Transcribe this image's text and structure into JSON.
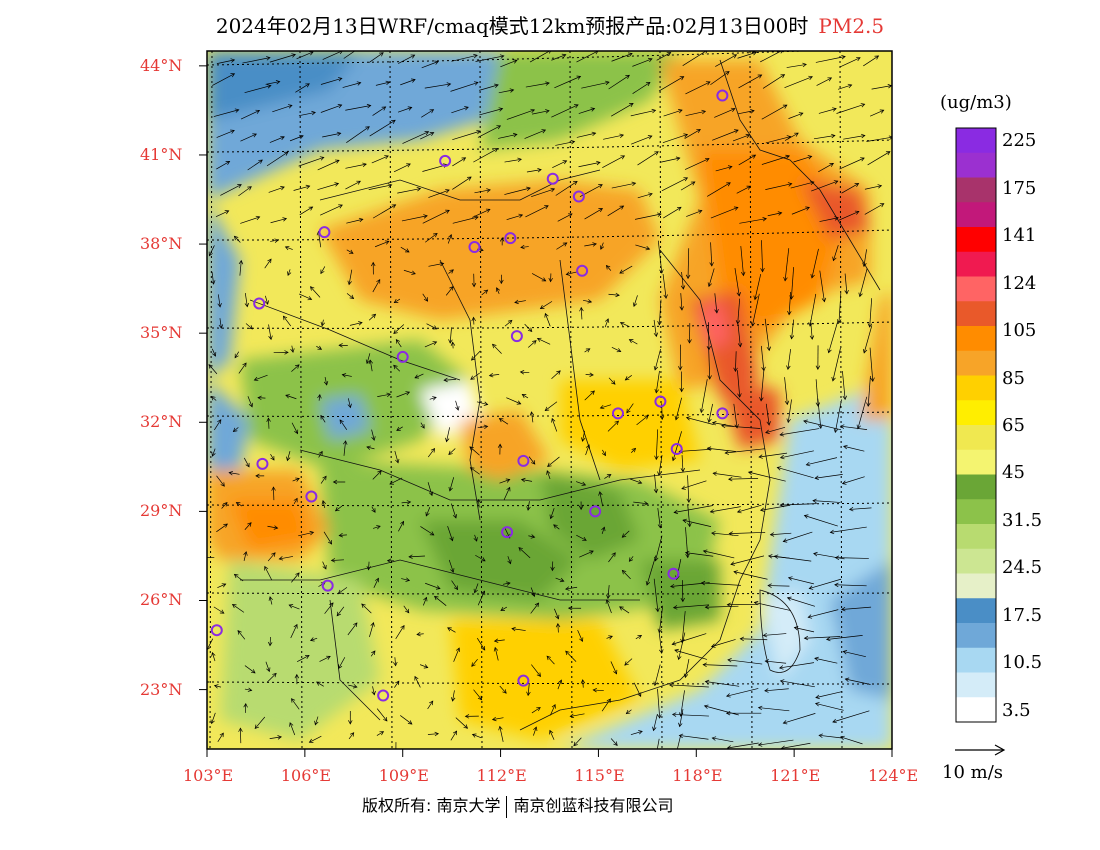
{
  "title": {
    "main": "2024年02月13日WRF/cmaq模式12km预报产品:02月13日00时",
    "pollutant": "PM2.5"
  },
  "map": {
    "lon_range": [
      103,
      124
    ],
    "lat_range": [
      21,
      44.5
    ],
    "lat_labels": [
      "44°N",
      "41°N",
      "38°N",
      "35°N",
      "32°N",
      "29°N",
      "26°N",
      "23°N"
    ],
    "lat_values": [
      44,
      41,
      38,
      35,
      32,
      29,
      26,
      23
    ],
    "lon_labels": [
      "103°E",
      "106°E",
      "109°E",
      "112°E",
      "115°E",
      "118°E",
      "121°E",
      "124°E"
    ],
    "lon_values": [
      103,
      106,
      109,
      112,
      115,
      118,
      121,
      124
    ],
    "cities": [
      {
        "lon": 118.8,
        "lat": 43.0
      },
      {
        "lon": 110.3,
        "lat": 40.8
      },
      {
        "lon": 113.6,
        "lat": 40.2
      },
      {
        "lon": 114.4,
        "lat": 39.6
      },
      {
        "lon": 106.6,
        "lat": 38.4
      },
      {
        "lon": 111.2,
        "lat": 37.9
      },
      {
        "lon": 112.3,
        "lat": 38.2
      },
      {
        "lon": 114.5,
        "lat": 37.1
      },
      {
        "lon": 104.6,
        "lat": 36.0
      },
      {
        "lon": 112.5,
        "lat": 34.9
      },
      {
        "lon": 109.0,
        "lat": 34.2
      },
      {
        "lon": 115.6,
        "lat": 32.3
      },
      {
        "lon": 116.9,
        "lat": 32.7
      },
      {
        "lon": 118.8,
        "lat": 32.3
      },
      {
        "lon": 117.4,
        "lat": 31.1
      },
      {
        "lon": 104.7,
        "lat": 30.6
      },
      {
        "lon": 112.7,
        "lat": 30.7
      },
      {
        "lon": 106.2,
        "lat": 29.5
      },
      {
        "lon": 114.9,
        "lat": 29.0
      },
      {
        "lon": 112.2,
        "lat": 28.3
      },
      {
        "lon": 106.7,
        "lat": 26.5
      },
      {
        "lon": 117.3,
        "lat": 26.9
      },
      {
        "lon": 103.3,
        "lat": 25.0
      },
      {
        "lon": 108.4,
        "lat": 22.8
      },
      {
        "lon": 112.7,
        "lat": 23.3
      }
    ]
  },
  "colorbar": {
    "unit": "(ug/m3)",
    "colors": [
      "#8a2be2",
      "#9b30d0",
      "#a8336b",
      "#c2187a",
      "#ff0000",
      "#f01a50",
      "#ff6464",
      "#e9592a",
      "#ff8c00",
      "#f7a428",
      "#ffd000",
      "#ffee00",
      "#f0e850",
      "#f4f470",
      "#6aa636",
      "#8cc24a",
      "#b8db70",
      "#cce692",
      "#e6f0c8",
      "#4a8ec6",
      "#6fa8d8",
      "#a8d8f2",
      "#d4ecf8",
      "#ffffff"
    ],
    "labels": [
      "225",
      "175",
      "141",
      "124",
      "105",
      "85",
      "65",
      "45",
      "31.5",
      "24.5",
      "17.5",
      "10.5",
      "3.5"
    ]
  },
  "wind_reference": {
    "label": "10 m/s"
  },
  "copyright": {
    "left": "版权所有: 南京大学",
    "right": "南京创蓝科技有限公司"
  }
}
